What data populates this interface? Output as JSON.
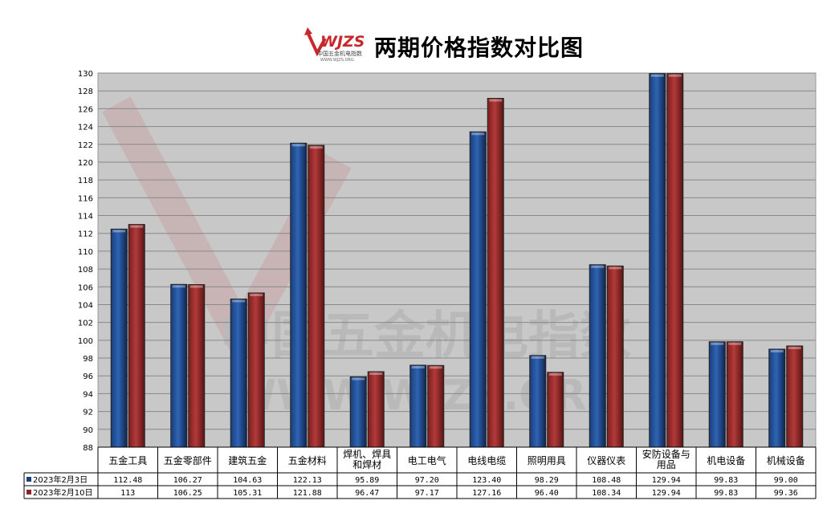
{
  "title": "两期价格指数对比图",
  "logo": {
    "text": "WJZS",
    "subtext": "中国五金机电指数",
    "url_text": "WWW.WJZS.ORG"
  },
  "watermark": {
    "line1": "中国五金机电指数",
    "line2": "WWW.WJZS.ORG"
  },
  "colors": {
    "series1": "#2f64b4",
    "series2": "#b33a3a",
    "plot_bg": "#c8c8c8"
  },
  "chart_data": {
    "type": "bar",
    "title": "两期价格指数对比图",
    "categories": [
      [
        "五金工具"
      ],
      [
        "五金零部件"
      ],
      [
        "建筑五金"
      ],
      [
        "五金材料"
      ],
      [
        "焊机、焊具",
        "和焊材"
      ],
      [
        "电工电气"
      ],
      [
        "电线电缆"
      ],
      [
        "照明用具"
      ],
      [
        "仪器仪表"
      ],
      [
        "安防设备与",
        "用品"
      ],
      [
        "机电设备"
      ],
      [
        "机械设备"
      ]
    ],
    "series": [
      {
        "name": "2023年2月3日",
        "values": [
          112.48,
          106.27,
          104.63,
          122.13,
          95.89,
          97.2,
          123.4,
          98.29,
          108.48,
          129.94,
          99.83,
          99.0
        ],
        "labels": [
          "112.48",
          "106.27",
          "104.63",
          "122.13",
          "95.89",
          "97.20",
          "123.40",
          "98.29",
          "108.48",
          "129.94",
          "99.83",
          "99.00"
        ]
      },
      {
        "name": "2023年2月10日",
        "values": [
          113,
          106.25,
          105.31,
          121.88,
          96.47,
          97.17,
          127.16,
          96.4,
          108.34,
          129.94,
          99.83,
          99.36
        ],
        "labels": [
          "113",
          "106.25",
          "105.31",
          "121.88",
          "96.47",
          "97.17",
          "127.16",
          "96.40",
          "108.34",
          "129.94",
          "99.83",
          "99.36"
        ]
      }
    ],
    "ylim": [
      88,
      130
    ],
    "yticks": [
      "88",
      "90",
      "92",
      "94",
      "96",
      "98",
      "100",
      "102",
      "104",
      "106",
      "108",
      "110",
      "112",
      "114",
      "116",
      "118",
      "120",
      "122",
      "124",
      "126",
      "128",
      "130"
    ],
    "grid": true,
    "legend": "data-table"
  }
}
